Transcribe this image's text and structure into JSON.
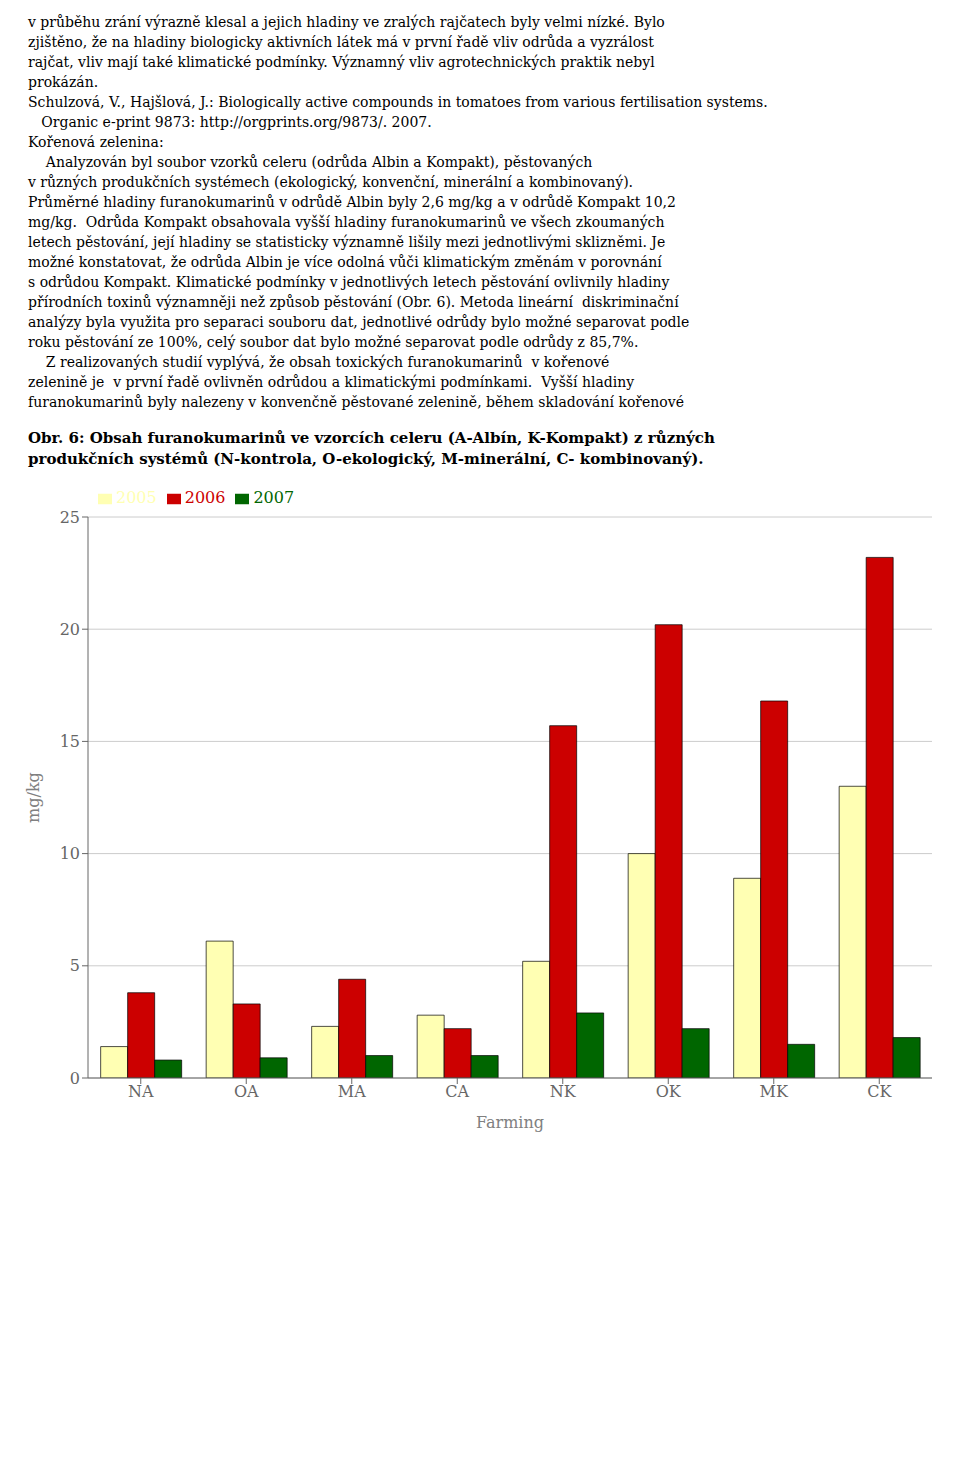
{
  "chart_data": {
    "type": "bar",
    "title": "Obr. 6: Obsah furanokumarinů ve vzorcích celeru (A-Albín, K-Kompakt) z různých\nprodukčních systémů (N-kontrola, O-ekologický, M-minerální, C- kombinovaný).",
    "xlabel": "Farming",
    "ylabel": "mg/kg",
    "categories": [
      "NA",
      "OA",
      "MA",
      "CA",
      "NK",
      "OK",
      "MK",
      "CK"
    ],
    "series": [
      {
        "name": "2005",
        "color": "#FFFFB3",
        "values": [
          1.4,
          6.1,
          2.3,
          2.8,
          5.2,
          10.0,
          8.9,
          13.0
        ]
      },
      {
        "name": "2006",
        "color": "#CC0000",
        "values": [
          3.8,
          3.3,
          4.4,
          2.2,
          15.7,
          20.2,
          16.8,
          23.2
        ]
      },
      {
        "name": "2007",
        "color": "#006600",
        "values": [
          0.8,
          0.9,
          1.0,
          1.0,
          2.9,
          2.2,
          1.5,
          1.8
        ]
      }
    ],
    "ylim": [
      0,
      25
    ],
    "yticks": [
      0,
      5,
      10,
      15,
      20,
      25
    ],
    "grid": true,
    "legend": "upper left",
    "annotations": [
      "v průběhu zrání výrazně klesal a jejich hladiny ve zralých rajčatech byly velmi nízké. Bylo",
      "zjištěno, že na hladiny biologicky aktivních látek má v první řadě vliv odrůda a vyzrálost",
      "rajčat, vliv mají také klimatické podmínky. Významný vliv agrotechnických praktik nebyl",
      "prokázán.",
      "Schulzová, V., Hajšlová, J.: Biologically active compounds in tomatoes from various fertilisation systems.",
      "   Organic e-print 9873: http://orgprints.org/9873/. 2007.",
      "Kořenová zelenina:",
      "    Analyzován byl soubor vzorků celeru (odrůda Albin a Kompakt), pěstovaných",
      "v různých produkčních systémech (ekologický, konvenční, minerální a kombinovaný).",
      "Průměrné hladiny furanokumarinů v odrůdě Albin byly 2,6 mg/kg a v odrůdě Kompakt 10,2",
      "mg/kg.  Odrůda Kompakt obsahovala vyšší hladiny furanokumarinů ve všech zkoumaných",
      "letech pěstování, její hladiny se statisticky významně lišily mezi jednotlivými sklizněmi. Je",
      "možné konstatovat, že odrůda Albin je více odolná vůči klimatickým změnám v porovnání",
      "s odrůdou Kompakt. Klimatické podmínky v jednotlivých letech pěstování ovlivnily hladiny",
      "přírodních toxinů významněji než způsob pěstování (Obr. 6). Metoda lineární  diskriminační",
      "analýzy byla využita pro separaci souboru dat, jednotlivé odrůdy bylo možné separovat podle",
      "roku pěstování ze 100%, celý soubor dat bylo možné separovat podle odrůdy z 85,7%.",
      "    Z realizovaných studií vyplývá, že obsah toxických furanokumarinů  v kořenové",
      "zelenině je  v první řadě ovlivněn odrůdou a klimatickými podmínkami.  Vyšší hladiny",
      "furanokumarinů byly nalezeny v konvenčně pěstované zelenině, během skladování kořenové"
    ]
  }
}
